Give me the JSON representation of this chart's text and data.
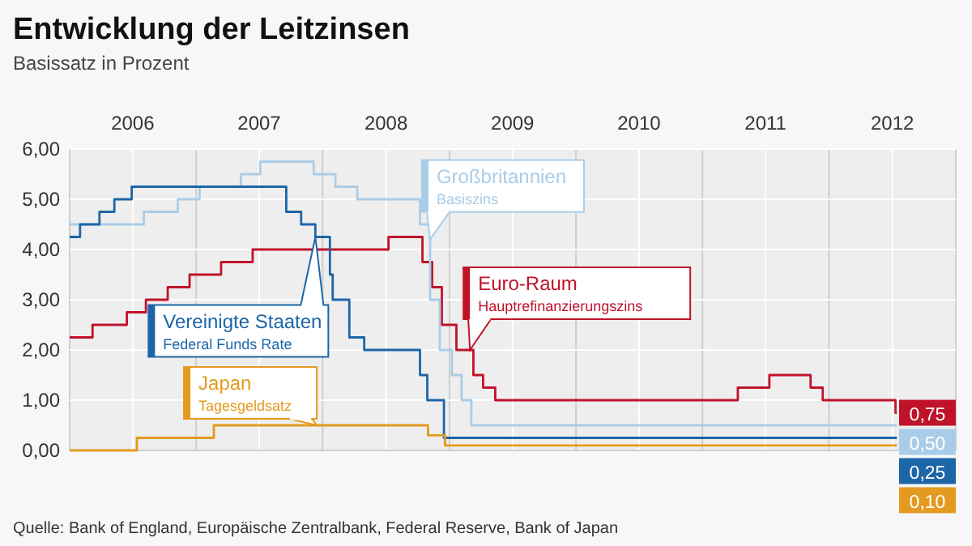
{
  "chart_data": {
    "type": "step",
    "title": "Entwicklung der Leitzinsen",
    "subtitle": "Basissatz in Prozent",
    "xlim": [
      "2006-01-01",
      "2013-01-01"
    ],
    "xticks": [
      {
        "value": "2006-01-01",
        "label": null
      },
      {
        "value": "2006-07-02",
        "label": "2006"
      },
      {
        "value": "2007-01-01",
        "label": null
      },
      {
        "value": "2007-07-02",
        "label": "2007"
      },
      {
        "value": "2008-01-01",
        "label": null
      },
      {
        "value": "2008-07-02",
        "label": "2008"
      },
      {
        "value": "2009-01-01",
        "label": null
      },
      {
        "value": "2009-07-02",
        "label": "2009"
      },
      {
        "value": "2010-01-01",
        "label": null
      },
      {
        "value": "2010-07-02",
        "label": "2010"
      },
      {
        "value": "2011-01-01",
        "label": null
      },
      {
        "value": "2011-07-02",
        "label": "2011"
      },
      {
        "value": "2012-01-01",
        "label": null
      },
      {
        "value": "2012-07-02",
        "label": "2012"
      },
      {
        "value": "2013-01-01",
        "label": null
      }
    ],
    "ylim": [
      0,
      6
    ],
    "yticks": [
      {
        "value": 0,
        "label": "0,00"
      },
      {
        "value": 1,
        "label": "1,00"
      },
      {
        "value": 2,
        "label": "2,00"
      },
      {
        "value": 3,
        "label": "3,00"
      },
      {
        "value": 4,
        "label": "4,00"
      },
      {
        "value": 5,
        "label": "5,00"
      },
      {
        "value": 6,
        "label": "6,00"
      }
    ],
    "grid": true,
    "legend": "top left",
    "series": [
      {
        "name": "Euro-Raum",
        "color": "#c0132a",
        "x": [
          "2006-01-01",
          "2006-03-08",
          "2006-06-15",
          "2006-08-09",
          "2006-10-11",
          "2006-12-13",
          "2007-03-14",
          "2007-06-13",
          "2008-07-09",
          "2008-10-15",
          "2008-11-12",
          "2008-12-10",
          "2009-01-21",
          "2009-03-11",
          "2009-04-08",
          "2009-05-13",
          "2011-04-13",
          "2011-07-13",
          "2011-11-09",
          "2011-12-14",
          "2012-07-11",
          "2012-07-15"
        ],
        "values": [
          2.25,
          2.5,
          2.75,
          3.0,
          3.25,
          3.5,
          3.75,
          4.0,
          4.25,
          3.75,
          3.25,
          2.5,
          2.0,
          1.5,
          1.25,
          1.0,
          1.25,
          1.5,
          1.25,
          1.0,
          0.75,
          0.75
        ],
        "value_labels": [
          null,
          null,
          null,
          null,
          null,
          null,
          null,
          null,
          null,
          null,
          null,
          null,
          null,
          null,
          null,
          null,
          null,
          null,
          null,
          null,
          null,
          "0,75"
        ]
      },
      {
        "name": "Großbritannien",
        "color": "#a9cde8",
        "x": [
          "2006-01-01",
          "2006-08-03",
          "2006-11-09",
          "2007-01-11",
          "2007-05-10",
          "2007-07-05",
          "2007-12-06",
          "2008-02-07",
          "2008-04-10",
          "2008-10-08",
          "2008-11-06",
          "2008-12-04",
          "2009-01-08",
          "2009-02-05",
          "2009-03-05",
          "2012-07-15"
        ],
        "values": [
          4.5,
          4.75,
          5.0,
          5.25,
          5.5,
          5.75,
          5.5,
          5.25,
          5.0,
          4.5,
          3.0,
          2.0,
          1.5,
          1.0,
          0.5,
          0.5
        ],
        "value_labels": [
          null,
          null,
          null,
          null,
          null,
          null,
          null,
          null,
          null,
          null,
          null,
          null,
          null,
          null,
          null,
          "0,50"
        ]
      },
      {
        "name": "Vereinigte Staaten",
        "color": "#1c66a8",
        "x": [
          "2006-01-01",
          "2006-01-31",
          "2006-03-28",
          "2006-05-10",
          "2006-06-29",
          "2007-09-18",
          "2007-10-31",
          "2007-12-11",
          "2008-01-22",
          "2008-01-30",
          "2008-03-18",
          "2008-04-30",
          "2008-10-08",
          "2008-10-29",
          "2008-12-16",
          "2012-07-15"
        ],
        "values": [
          4.25,
          4.5,
          4.75,
          5.0,
          5.25,
          4.75,
          4.5,
          4.25,
          3.5,
          3.0,
          2.25,
          2.0,
          1.5,
          1.0,
          0.25,
          0.25
        ],
        "value_labels": [
          null,
          null,
          null,
          null,
          null,
          null,
          null,
          null,
          null,
          null,
          null,
          null,
          null,
          null,
          null,
          "0,25"
        ]
      },
      {
        "name": "Japan",
        "color": "#e39a1f",
        "x": [
          "2006-01-01",
          "2006-07-14",
          "2007-02-21",
          "2008-10-31",
          "2008-12-19",
          "2012-07-15"
        ],
        "values": [
          0.0,
          0.25,
          0.5,
          0.3,
          0.1,
          0.1
        ],
        "value_labels": [
          null,
          null,
          null,
          null,
          null,
          "0,10"
        ]
      }
    ],
    "annotations": [
      {
        "text": "Hauptrefinanzierungszins",
        "x": "2009-03-01",
        "y": 2.0
      },
      {
        "text": "Basiszins",
        "x": "2008-11-06",
        "y": 4.2
      },
      "Federal Funds Rate",
      {
        "text": "Tagesgeldsatz",
        "x": "2007-12-15",
        "y": 0.5
      },
      "Quelle: Bank of England, Europäische Zentralbank, Federal Reserve, Bank of Japan"
    ]
  }
}
